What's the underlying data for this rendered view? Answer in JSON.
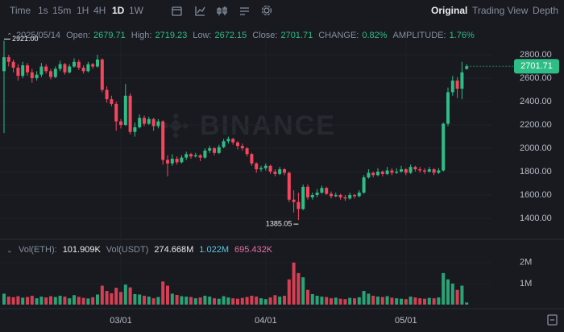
{
  "toolbar": {
    "intervals": [
      "Time",
      "1s",
      "15m",
      "1H",
      "4H",
      "1D",
      "1W"
    ],
    "active": "1D",
    "views": [
      "Original",
      "Trading View",
      "Depth"
    ],
    "active_view": "Original"
  },
  "header": {
    "date": "2025/05/14",
    "items": [
      {
        "label": "Open:",
        "text": "2679.71"
      },
      {
        "label": "High:",
        "text": "2719.23"
      },
      {
        "label": "Low:",
        "text": "2672.15"
      },
      {
        "label": "Close:",
        "text": "2701.71"
      },
      {
        "label": "CHANGE:",
        "text": "0.82%"
      },
      {
        "label": "AMPLITUDE:",
        "text": "1.76%"
      }
    ]
  },
  "volume_header": {
    "items": [
      {
        "label": "Vol(ETH):",
        "text": "101.909K",
        "color": "#eaecef"
      },
      {
        "label": "Vol(USDT)",
        "text": "274.668M",
        "color": "#eaecef"
      },
      {
        "label": "",
        "text": "1.022M",
        "color": "#5ec4e0"
      },
      {
        "label": "",
        "text": "695.432K",
        "color": "#e46fa3"
      }
    ]
  },
  "watermark": "BINANCE",
  "chart_data": {
    "type": "candlestick",
    "up_color": "#2ebd85",
    "down_color": "#f6465d",
    "ylim": [
      1234,
      3028
    ],
    "yticks": [
      {
        "value": 2800,
        "label": "2800.00"
      },
      {
        "value": 2600,
        "label": "2600.00"
      },
      {
        "value": 2400,
        "label": "2400.00"
      },
      {
        "value": 2200,
        "label": "2200.00"
      },
      {
        "value": 2000,
        "label": "2000.00"
      },
      {
        "value": 1800,
        "label": "1800.00"
      },
      {
        "value": 1600,
        "label": "1600.00"
      },
      {
        "value": 1400,
        "label": "1400.00"
      }
    ],
    "xticks": [
      {
        "value": 25,
        "label": "03/01"
      },
      {
        "value": 56,
        "label": "04/01"
      },
      {
        "value": 86,
        "label": "05/01"
      }
    ],
    "annotations": [
      {
        "index": 0,
        "value": 2921,
        "label": "2921.00"
      },
      {
        "index": 63,
        "value": 1385.05,
        "label": "1385.05"
      }
    ],
    "last_price": {
      "value": 2701.71,
      "label": "2701.71"
    },
    "candles": [
      [
        2660,
        2921,
        2130,
        2780
      ],
      [
        2780,
        2800,
        2700,
        2740
      ],
      [
        2740,
        2760,
        2650,
        2690
      ],
      [
        2690,
        2720,
        2580,
        2620
      ],
      [
        2620,
        2740,
        2600,
        2710
      ],
      [
        2710,
        2730,
        2620,
        2650
      ],
      [
        2650,
        2680,
        2560,
        2600
      ],
      [
        2600,
        2660,
        2580,
        2630
      ],
      [
        2630,
        2730,
        2610,
        2700
      ],
      [
        2700,
        2720,
        2640,
        2660
      ],
      [
        2660,
        2680,
        2590,
        2610
      ],
      [
        2610,
        2700,
        2600,
        2680
      ],
      [
        2680,
        2750,
        2660,
        2720
      ],
      [
        2720,
        2730,
        2630,
        2650
      ],
      [
        2650,
        2720,
        2640,
        2700
      ],
      [
        2700,
        2770,
        2690,
        2740
      ],
      [
        2740,
        2760,
        2670,
        2690
      ],
      [
        2690,
        2710,
        2640,
        2660
      ],
      [
        2660,
        2740,
        2650,
        2720
      ],
      [
        2720,
        2730,
        2680,
        2700
      ],
      [
        2700,
        2800,
        2690,
        2760
      ],
      [
        2760,
        2770,
        2480,
        2500
      ],
      [
        2500,
        2530,
        2390,
        2420
      ],
      [
        2420,
        2450,
        2360,
        2380
      ],
      [
        2380,
        2400,
        2150,
        2230
      ],
      [
        2230,
        2250,
        2170,
        2200
      ],
      [
        2200,
        2550,
        2190,
        2450
      ],
      [
        2450,
        2470,
        2120,
        2140
      ],
      [
        2140,
        2220,
        2100,
        2180
      ],
      [
        2180,
        2290,
        2170,
        2260
      ],
      [
        2260,
        2280,
        2190,
        2210
      ],
      [
        2210,
        2270,
        2200,
        2250
      ],
      [
        2250,
        2260,
        2150,
        2190
      ],
      [
        2190,
        2250,
        2170,
        2230
      ],
      [
        2230,
        2240,
        1860,
        1900
      ],
      [
        1900,
        1940,
        1760,
        1870
      ],
      [
        1870,
        1950,
        1850,
        1910
      ],
      [
        1910,
        1930,
        1860,
        1880
      ],
      [
        1880,
        1940,
        1870,
        1920
      ],
      [
        1920,
        1970,
        1900,
        1950
      ],
      [
        1950,
        1960,
        1910,
        1930
      ],
      [
        1930,
        1960,
        1920,
        1940
      ],
      [
        1940,
        1950,
        1890,
        1920
      ],
      [
        1920,
        2000,
        1910,
        1980
      ],
      [
        1980,
        2020,
        1960,
        2000
      ],
      [
        2000,
        2010,
        1940,
        1960
      ],
      [
        1960,
        2030,
        1950,
        2010
      ],
      [
        2010,
        2080,
        2000,
        2060
      ],
      [
        2060,
        2100,
        2040,
        2080
      ],
      [
        2080,
        2090,
        2030,
        2050
      ],
      [
        2050,
        2060,
        1990,
        2020
      ],
      [
        2020,
        2040,
        1980,
        2000
      ],
      [
        2000,
        2010,
        1930,
        1950
      ],
      [
        1950,
        1960,
        1850,
        1870
      ],
      [
        1870,
        1880,
        1790,
        1820
      ],
      [
        1820,
        1850,
        1800,
        1830
      ],
      [
        1830,
        1870,
        1810,
        1850
      ],
      [
        1850,
        1860,
        1780,
        1800
      ],
      [
        1800,
        1820,
        1760,
        1780
      ],
      [
        1780,
        1840,
        1770,
        1820
      ],
      [
        1820,
        1830,
        1770,
        1790
      ],
      [
        1790,
        1800,
        1540,
        1560
      ],
      [
        1560,
        1640,
        1450,
        1540
      ],
      [
        1540,
        1620,
        1385.05,
        1480
      ],
      [
        1480,
        1690,
        1470,
        1670
      ],
      [
        1670,
        1690,
        1560,
        1580
      ],
      [
        1580,
        1620,
        1560,
        1600
      ],
      [
        1600,
        1650,
        1580,
        1620
      ],
      [
        1620,
        1680,
        1610,
        1660
      ],
      [
        1660,
        1670,
        1600,
        1610
      ],
      [
        1610,
        1630,
        1570,
        1590
      ],
      [
        1590,
        1620,
        1580,
        1600
      ],
      [
        1600,
        1610,
        1560,
        1580
      ],
      [
        1580,
        1600,
        1550,
        1570
      ],
      [
        1570,
        1620,
        1560,
        1600
      ],
      [
        1600,
        1610,
        1570,
        1590
      ],
      [
        1590,
        1640,
        1580,
        1620
      ],
      [
        1620,
        1770,
        1610,
        1750
      ],
      [
        1750,
        1820,
        1740,
        1790
      ],
      [
        1790,
        1800,
        1750,
        1770
      ],
      [
        1770,
        1830,
        1760,
        1800
      ],
      [
        1800,
        1810,
        1760,
        1780
      ],
      [
        1780,
        1840,
        1770,
        1810
      ],
      [
        1810,
        1830,
        1770,
        1790
      ],
      [
        1790,
        1830,
        1780,
        1800
      ],
      [
        1800,
        1850,
        1790,
        1820
      ],
      [
        1820,
        1830,
        1770,
        1790
      ],
      [
        1790,
        1860,
        1780,
        1840
      ],
      [
        1840,
        1850,
        1800,
        1820
      ],
      [
        1820,
        1840,
        1790,
        1810
      ],
      [
        1810,
        1830,
        1780,
        1800
      ],
      [
        1800,
        1840,
        1790,
        1820
      ],
      [
        1820,
        1830,
        1770,
        1790
      ],
      [
        1790,
        1830,
        1780,
        1810
      ],
      [
        1810,
        2220,
        1800,
        2210
      ],
      [
        2210,
        2520,
        2190,
        2480
      ],
      [
        2480,
        2620,
        2450,
        2580
      ],
      [
        2580,
        2610,
        2430,
        2510
      ],
      [
        2510,
        2740,
        2420,
        2650
      ],
      [
        2679.71,
        2719.23,
        2672.15,
        2701.71
      ]
    ],
    "volumes": [
      520000,
      380000,
      350000,
      400000,
      330000,
      360000,
      420000,
      300000,
      380000,
      340000,
      400000,
      360000,
      420000,
      380000,
      300000,
      450000,
      370000,
      320000,
      290000,
      350000,
      480000,
      900000,
      650000,
      540000,
      800000,
      600000,
      950000,
      820000,
      500000,
      480000,
      420000,
      380000,
      300000,
      360000,
      1100000,
      900000,
      520000,
      460000,
      400000,
      380000,
      360000,
      300000,
      340000,
      420000,
      380000,
      300000,
      280000,
      400000,
      340000,
      300000,
      280000,
      320000,
      360000,
      420000,
      380000,
      300000,
      260000,
      340000,
      450000,
      380000,
      420000,
      1200000,
      2000000,
      1500000,
      1300000,
      700000,
      500000,
      420000,
      380000,
      360000,
      300000,
      330000,
      280000,
      260000,
      320000,
      300000,
      350000,
      650000,
      520000,
      420000,
      380000,
      360000,
      400000,
      330000,
      300000,
      280000,
      260000,
      380000,
      340000,
      300000,
      280000,
      320000,
      300000,
      340000,
      1500000,
      1200000,
      1000000,
      700000,
      900000,
      101909
    ],
    "vol_ylim": [
      0,
      2300000
    ],
    "vol_yticks": [
      {
        "value": 2000000,
        "label": "2M"
      },
      {
        "value": 1000000,
        "label": "1M"
      }
    ]
  }
}
